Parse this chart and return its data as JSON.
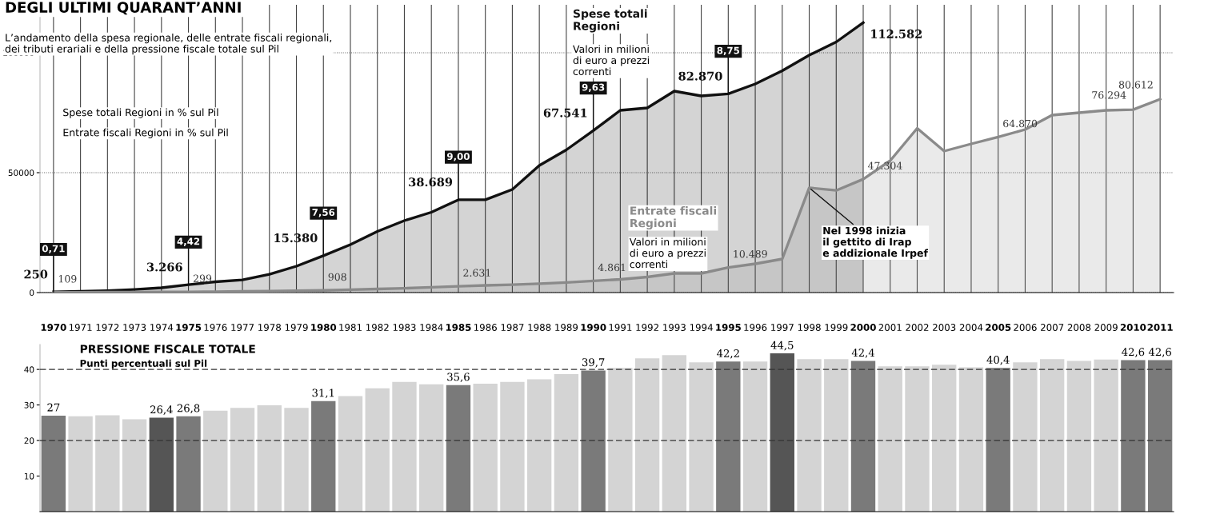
{
  "chart_data": [
    {
      "type": "area",
      "title": "DEGLI ULTIMI QUARANT’ANNI",
      "subtitle": "L’andamento della spesa regionale, delle entrate fiscali regionali,\ndei tributi erariali e della pressione fiscale totale sul Pil",
      "categories": [
        "1970",
        "1971",
        "1972",
        "1973",
        "1974",
        "1975",
        "1976",
        "1977",
        "1978",
        "1979",
        "1980",
        "1981",
        "1982",
        "1983",
        "1984",
        "1985",
        "1986",
        "1987",
        "1988",
        "1989",
        "1990",
        "1991",
        "1992",
        "1993",
        "1994",
        "1995",
        "1996",
        "1997",
        "1998",
        "1999",
        "2000",
        "2001",
        "2002",
        "2003",
        "2004",
        "2005",
        "2006",
        "2007",
        "2008",
        "2009",
        "2010",
        "2011"
      ],
      "ylim": [
        0,
        120000
      ],
      "yticks": [
        0,
        50000,
        100000
      ],
      "grid": true,
      "series": [
        {
          "name": "Spese totali Regioni",
          "color": "#111111",
          "values": [
            250,
            500,
            800,
            1300,
            2000,
            3266,
            4500,
            5300,
            7600,
            11000,
            15380,
            20000,
            25500,
            30000,
            33500,
            38689,
            38700,
            43000,
            53000,
            59500,
            67541,
            76000,
            77000,
            84000,
            82000,
            82870,
            87000,
            92500,
            99000,
            104500,
            112582,
            null,
            null,
            null,
            null,
            null,
            null,
            null,
            null,
            null,
            null,
            null
          ],
          "value_labels": [
            "250",
            null,
            null,
            null,
            null,
            "3.266",
            null,
            null,
            null,
            null,
            "15.380",
            null,
            null,
            null,
            null,
            "38.689",
            null,
            null,
            null,
            null,
            "67.541",
            null,
            null,
            null,
            null,
            "82.870",
            null,
            null,
            null,
            null,
            "112.582",
            null,
            null,
            null,
            null,
            null,
            null,
            null,
            null,
            null,
            null,
            null
          ]
        },
        {
          "name": "Entrate fiscali Regioni",
          "color": "#8a8a8a",
          "values": [
            109,
            150,
            180,
            200,
            250,
            299,
            400,
            500,
            600,
            750,
            908,
            1200,
            1500,
            1800,
            2200,
            2631,
            3000,
            3300,
            3700,
            4200,
            4861,
            5500,
            6500,
            8000,
            8000,
            10489,
            12000,
            14000,
            43700,
            42600,
            47304,
            55000,
            68500,
            59000,
            62000,
            64870,
            68000,
            74000,
            75000,
            76000,
            76294,
            80612
          ],
          "value_labels": [
            "109",
            null,
            null,
            null,
            null,
            "299",
            null,
            null,
            null,
            null,
            "908",
            null,
            null,
            null,
            null,
            "2.631",
            null,
            null,
            null,
            null,
            "4.861",
            null,
            null,
            null,
            null,
            "10.489",
            null,
            null,
            null,
            null,
            "47.304",
            null,
            null,
            null,
            null,
            "64.870",
            null,
            null,
            null,
            null,
            "76.294",
            "80.612"
          ]
        }
      ],
      "annotations": [
        {
          "text": "0,71",
          "x": "1970",
          "y": 250
        },
        {
          "text": "4,42",
          "x": "1975",
          "y": 3266
        },
        {
          "text": "7,56",
          "x": "1980",
          "y": 15380
        },
        {
          "text": "9,00",
          "x": "1985",
          "y": 38689
        },
        {
          "text": "9,63",
          "x": "1990",
          "y": 67541
        },
        {
          "text": "8,75",
          "x": "1995",
          "y": 82870
        },
        {
          "text": "Nel 1998 inizia\nil gettito di Irap\ne addizionale Irpef",
          "x": "1998",
          "y": 43700
        },
        "Valori in milioni\ndi euro a prezzi\ncorrenti",
        "Valori in milioni\ndi euro a prezzi\ncorrenti",
        "Spese totali Regioni in % sul Pil",
        "Entrate fiscali Regioni in % sul Pil"
      ]
    },
    {
      "type": "bar",
      "title": "PRESSIONE FISCALE TOTALE",
      "subtitle": "Punti percentuali sul Pil",
      "tick_labels": "y",
      "categories": [
        "1970",
        "1971",
        "1972",
        "1973",
        "1974",
        "1975",
        "1976",
        "1977",
        "1978",
        "1979",
        "1980",
        "1981",
        "1982",
        "1983",
        "1984",
        "1985",
        "1986",
        "1987",
        "1988",
        "1989",
        "1990",
        "1991",
        "1992",
        "1993",
        "1994",
        "1995",
        "1996",
        "1997",
        "1998",
        "1999",
        "2000",
        "2001",
        "2002",
        "2003",
        "2004",
        "2005",
        "2006",
        "2007",
        "2008",
        "2009",
        "2010",
        "2011"
      ],
      "ylim": [
        0,
        47
      ],
      "yticks": [
        10,
        20,
        30,
        40
      ],
      "values": [
        27,
        26.8,
        27.1,
        26,
        26.4,
        26.8,
        28.4,
        29.2,
        29.9,
        29.2,
        31.1,
        32.5,
        34.7,
        36.5,
        35.8,
        35.6,
        36,
        36.5,
        37.2,
        38.7,
        39.7,
        40.4,
        43.1,
        44,
        42,
        42.2,
        42.2,
        44.5,
        42.9,
        42.9,
        42.4,
        40.9,
        40.9,
        41.3,
        40.6,
        40.4,
        42,
        42.9,
        42.4,
        42.8,
        42.6,
        42.6
      ],
      "colors": [
        "#7a7a7a",
        "#d4d4d4",
        "#d4d4d4",
        "#d4d4d4",
        "#555555",
        "#7a7a7a",
        "#d4d4d4",
        "#d4d4d4",
        "#d4d4d4",
        "#d4d4d4",
        "#7a7a7a",
        "#d4d4d4",
        "#d4d4d4",
        "#d4d4d4",
        "#d4d4d4",
        "#7a7a7a",
        "#d4d4d4",
        "#d4d4d4",
        "#d4d4d4",
        "#d4d4d4",
        "#7a7a7a",
        "#d4d4d4",
        "#d4d4d4",
        "#d4d4d4",
        "#d4d4d4",
        "#7a7a7a",
        "#d4d4d4",
        "#555555",
        "#d4d4d4",
        "#d4d4d4",
        "#7a7a7a",
        "#d4d4d4",
        "#d4d4d4",
        "#d4d4d4",
        "#d4d4d4",
        "#7a7a7a",
        "#d4d4d4",
        "#d4d4d4",
        "#d4d4d4",
        "#d4d4d4",
        "#7a7a7a",
        "#7a7a7a"
      ],
      "value_labels": [
        "27",
        null,
        null,
        null,
        "26,4",
        "26,8",
        null,
        null,
        null,
        null,
        "31,1",
        null,
        null,
        null,
        null,
        "35,6",
        null,
        null,
        null,
        null,
        "39,7",
        null,
        null,
        null,
        null,
        "42,2",
        null,
        "44,5",
        null,
        null,
        "42,4",
        null,
        null,
        null,
        null,
        "40,4",
        null,
        null,
        null,
        null,
        "42,6",
        "42,6"
      ],
      "ref_lines": [
        {
          "axis": "y",
          "value": 20,
          "line_style": "dashed",
          "color": "#333333"
        },
        {
          "axis": "y",
          "value": 40,
          "line_style": "dashed",
          "color": "#333333"
        }
      ]
    }
  ]
}
